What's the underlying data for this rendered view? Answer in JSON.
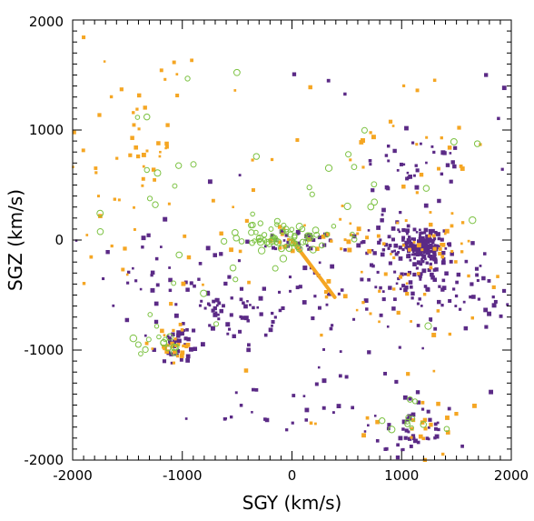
{
  "chart_data": {
    "type": "scatter",
    "xlabel": "SGY (km/s)",
    "ylabel": "SGZ (km/s)",
    "xlim": [
      -2000,
      2000
    ],
    "ylim": [
      -2000,
      2000
    ],
    "x_ticks": [
      -2000,
      -1000,
      0,
      1000,
      2000
    ],
    "y_ticks": [
      -2000,
      -1000,
      0,
      1000,
      2000
    ],
    "x_tick_labels": [
      "-2000",
      "-1000",
      "0",
      "1000",
      "2000"
    ],
    "y_tick_labels": [
      "-2000",
      "-1000",
      "0",
      "1000",
      "2000"
    ],
    "grid": false,
    "colors": {
      "purple": "#5b2a86",
      "orange": "#f5a623",
      "green": "#7cc242"
    },
    "series": [
      {
        "marker": "filled-square",
        "color": "#5b2a86",
        "clusters": [
          {
            "center": [
              1200,
              -50
            ],
            "spread": [
              90,
              70
            ],
            "count": 160
          },
          {
            "center": [
              1000,
              -20
            ],
            "spread": [
              220,
              120
            ],
            "count": 60
          },
          {
            "center": [
              1100,
              -450
            ],
            "spread": [
              300,
              200
            ],
            "count": 70
          },
          {
            "center": [
              1100,
              700
            ],
            "spread": [
              250,
              150
            ],
            "count": 35
          },
          {
            "center": [
              1100,
              -1750
            ],
            "spread": [
              150,
              150
            ],
            "count": 45
          },
          {
            "center": [
              -1050,
              -950
            ],
            "spread": [
              100,
              80
            ],
            "count": 40
          },
          {
            "center": [
              -700,
              -600
            ],
            "spread": [
              200,
              150
            ],
            "count": 35
          },
          {
            "center": [
              -1300,
              -300
            ],
            "spread": [
              350,
              250
            ],
            "count": 35
          },
          {
            "center": [
              -350,
              -700
            ],
            "spread": [
              200,
              150
            ],
            "count": 25
          },
          {
            "center": [
              100,
              0
            ],
            "spread": [
              200,
              60
            ],
            "count": 30
          },
          {
            "center": [
              300,
              -550
            ],
            "spread": [
              300,
              250
            ],
            "count": 25
          },
          {
            "center": [
              700,
              -1400
            ],
            "spread": [
              400,
              300
            ],
            "count": 25
          },
          {
            "center": [
              -200,
              -1500
            ],
            "spread": [
              400,
              200
            ],
            "count": 15
          },
          {
            "center": [
              1700,
              -500
            ],
            "spread": [
              200,
              200
            ],
            "count": 25
          },
          {
            "center": [
              0,
              0
            ],
            "spread": [
              1600,
              1600
            ],
            "count": 40
          }
        ]
      },
      {
        "marker": "filled-square",
        "color": "#f5a623",
        "clusters": [
          {
            "center": [
              -1400,
              900
            ],
            "spread": [
              250,
              300
            ],
            "count": 35
          },
          {
            "center": [
              -1100,
              -950
            ],
            "spread": [
              100,
              80
            ],
            "count": 25
          },
          {
            "center": [
              200,
              0
            ],
            "spread": [
              300,
              80
            ],
            "count": 25
          },
          {
            "center": [
              1200,
              0
            ],
            "spread": [
              350,
              150
            ],
            "count": 30
          },
          {
            "center": [
              1000,
              -500
            ],
            "spread": [
              400,
              300
            ],
            "count": 30
          },
          {
            "center": [
              1000,
              800
            ],
            "spread": [
              400,
              300
            ],
            "count": 20
          },
          {
            "center": [
              1100,
              -1700
            ],
            "spread": [
              200,
              150
            ],
            "count": 20
          },
          {
            "center": [
              -1700,
              400
            ],
            "spread": [
              200,
              400
            ],
            "count": 15
          },
          {
            "center": [
              0,
              0
            ],
            "spread": [
              1700,
              1700
            ],
            "count": 70
          }
        ],
        "line": {
          "from": [
            0,
            0
          ],
          "to": [
            390,
            -520
          ]
        }
      },
      {
        "marker": "open-circle",
        "color": "#7cc242",
        "clusters": [
          {
            "center": [
              -100,
              10
            ],
            "spread": [
              200,
              60
            ],
            "count": 45
          },
          {
            "center": [
              -150,
              100
            ],
            "spread": [
              200,
              150
            ],
            "count": 20
          },
          {
            "center": [
              -1150,
              -900
            ],
            "spread": [
              120,
              100
            ],
            "count": 15
          },
          {
            "center": [
              1050,
              -1700
            ],
            "spread": [
              150,
              150
            ],
            "count": 12
          },
          {
            "center": [
              900,
              500
            ],
            "spread": [
              300,
              300
            ],
            "count": 10
          },
          {
            "center": [
              -1200,
              300
            ],
            "spread": [
              400,
              500
            ],
            "count": 15
          },
          {
            "center": [
              0,
              0
            ],
            "spread": [
              1700,
              1700
            ],
            "count": 25
          }
        ]
      }
    ]
  }
}
